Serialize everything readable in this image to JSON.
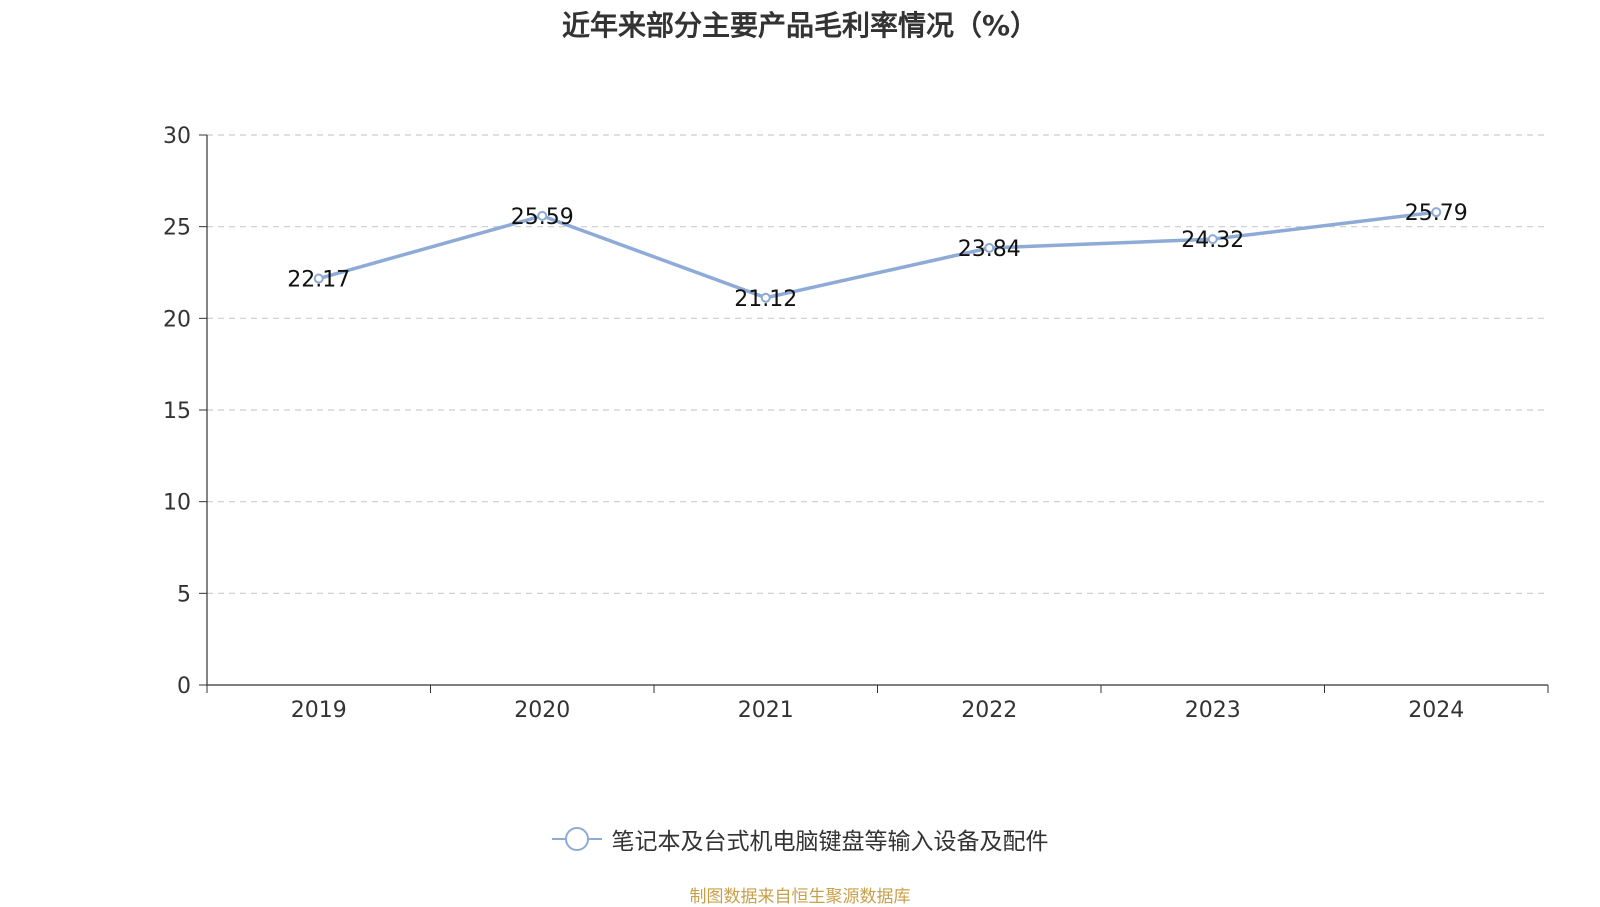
{
  "chart_data": {
    "type": "line",
    "title": "近年来部分主要产品毛利率情况（%）",
    "xlabel": "",
    "ylabel": "",
    "categories": [
      "2019",
      "2020",
      "2021",
      "2022",
      "2023",
      "2024"
    ],
    "series": [
      {
        "name": "笔记本及台式机电脑键盘等输入设备及配件",
        "values": [
          22.17,
          25.59,
          21.12,
          23.84,
          24.32,
          25.79
        ],
        "labels": [
          "22.17",
          "25.59",
          "21.12",
          "23.84",
          "24.32",
          "25.79"
        ]
      }
    ],
    "ylim": [
      0,
      30
    ],
    "yticks": [
      0,
      5,
      10,
      15,
      20,
      25,
      30
    ],
    "ytick_labels": [
      "0",
      "5",
      "10",
      "15",
      "20",
      "25",
      "30"
    ],
    "grid": true,
    "legend_position": "bottom-center"
  },
  "colors": {
    "series": "#8eaad6",
    "grid": "#cccccc",
    "axis": "#333333",
    "source": "#c8a04a"
  },
  "source_note": "制图数据来自恒生聚源数据库"
}
